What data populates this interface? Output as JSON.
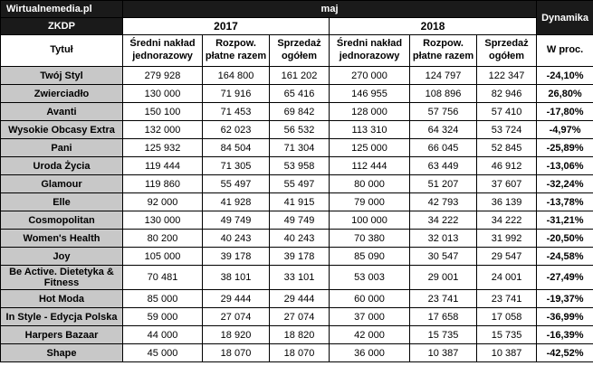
{
  "header": {
    "brand": "Wirtualnemedia.pl",
    "month": "maj",
    "dynamics": "Dynamika",
    "org": "ZKDP",
    "years": [
      "2017",
      "2018"
    ],
    "title_col": "Tytuł",
    "metric_cols": [
      "Średni nakład jednorazowy",
      "Rozpow. płatne razem",
      "Sprzedaż ogółem"
    ],
    "pct_col": "W proc."
  },
  "chart_data": {
    "type": "table",
    "title": "ZKDP maj: 2017 vs 2018",
    "columns": [
      "Tytuł",
      "2017 Średni nakład jednorazowy",
      "2017 Rozpow. płatne razem",
      "2017 Sprzedaż ogółem",
      "2018 Średni nakład jednorazowy",
      "2018 Rozpow. płatne razem",
      "2018 Sprzedaż ogółem",
      "Dynamika W proc."
    ],
    "rows": [
      [
        "Twój Styl",
        "279 928",
        "164 800",
        "161 202",
        "270 000",
        "124 797",
        "122 347",
        "-24,10%"
      ],
      [
        "Zwierciadło",
        "130 000",
        "71 916",
        "65 416",
        "146 955",
        "108 896",
        "82 946",
        "26,80%"
      ],
      [
        "Avanti",
        "150 100",
        "71 453",
        "69 842",
        "128 000",
        "57 756",
        "57 410",
        "-17,80%"
      ],
      [
        "Wysokie Obcasy Extra",
        "132 000",
        "62 023",
        "56 532",
        "113 310",
        "64 324",
        "53 724",
        "-4,97%"
      ],
      [
        "Pani",
        "125 932",
        "84 504",
        "71 304",
        "125 000",
        "66 045",
        "52 845",
        "-25,89%"
      ],
      [
        "Uroda Życia",
        "119 444",
        "71 305",
        "53 958",
        "112 444",
        "63 449",
        "46 912",
        "-13,06%"
      ],
      [
        "Glamour",
        "119 860",
        "55 497",
        "55 497",
        "80 000",
        "51 207",
        "37 607",
        "-32,24%"
      ],
      [
        "Elle",
        "92 000",
        "41 928",
        "41 915",
        "79 000",
        "42 793",
        "36 139",
        "-13,78%"
      ],
      [
        "Cosmopolitan",
        "130 000",
        "49 749",
        "49 749",
        "100 000",
        "34 222",
        "34 222",
        "-31,21%"
      ],
      [
        "Women's Health",
        "80 200",
        "40 243",
        "40 243",
        "70 380",
        "32 013",
        "31 992",
        "-20,50%"
      ],
      [
        "Joy",
        "105 000",
        "39 178",
        "39 178",
        "85 090",
        "30 547",
        "29 547",
        "-24,58%"
      ],
      [
        "Be Active. Dietetyka & Fitness",
        "70 481",
        "38 101",
        "33 101",
        "53 003",
        "29 001",
        "24 001",
        "-27,49%"
      ],
      [
        "Hot Moda",
        "85 000",
        "29 444",
        "29 444",
        "60 000",
        "23 741",
        "23 741",
        "-19,37%"
      ],
      [
        "In Style - Edycja Polska",
        "59 000",
        "27 074",
        "27 074",
        "37 000",
        "17 658",
        "17 058",
        "-36,99%"
      ],
      [
        "Harpers Bazaar",
        "44 000",
        "18 920",
        "18 820",
        "42 000",
        "15 735",
        "15 735",
        "-16,39%"
      ],
      [
        "Shape",
        "45 000",
        "18 070",
        "18 070",
        "36 000",
        "10 387",
        "10 387",
        "-42,52%"
      ]
    ]
  }
}
